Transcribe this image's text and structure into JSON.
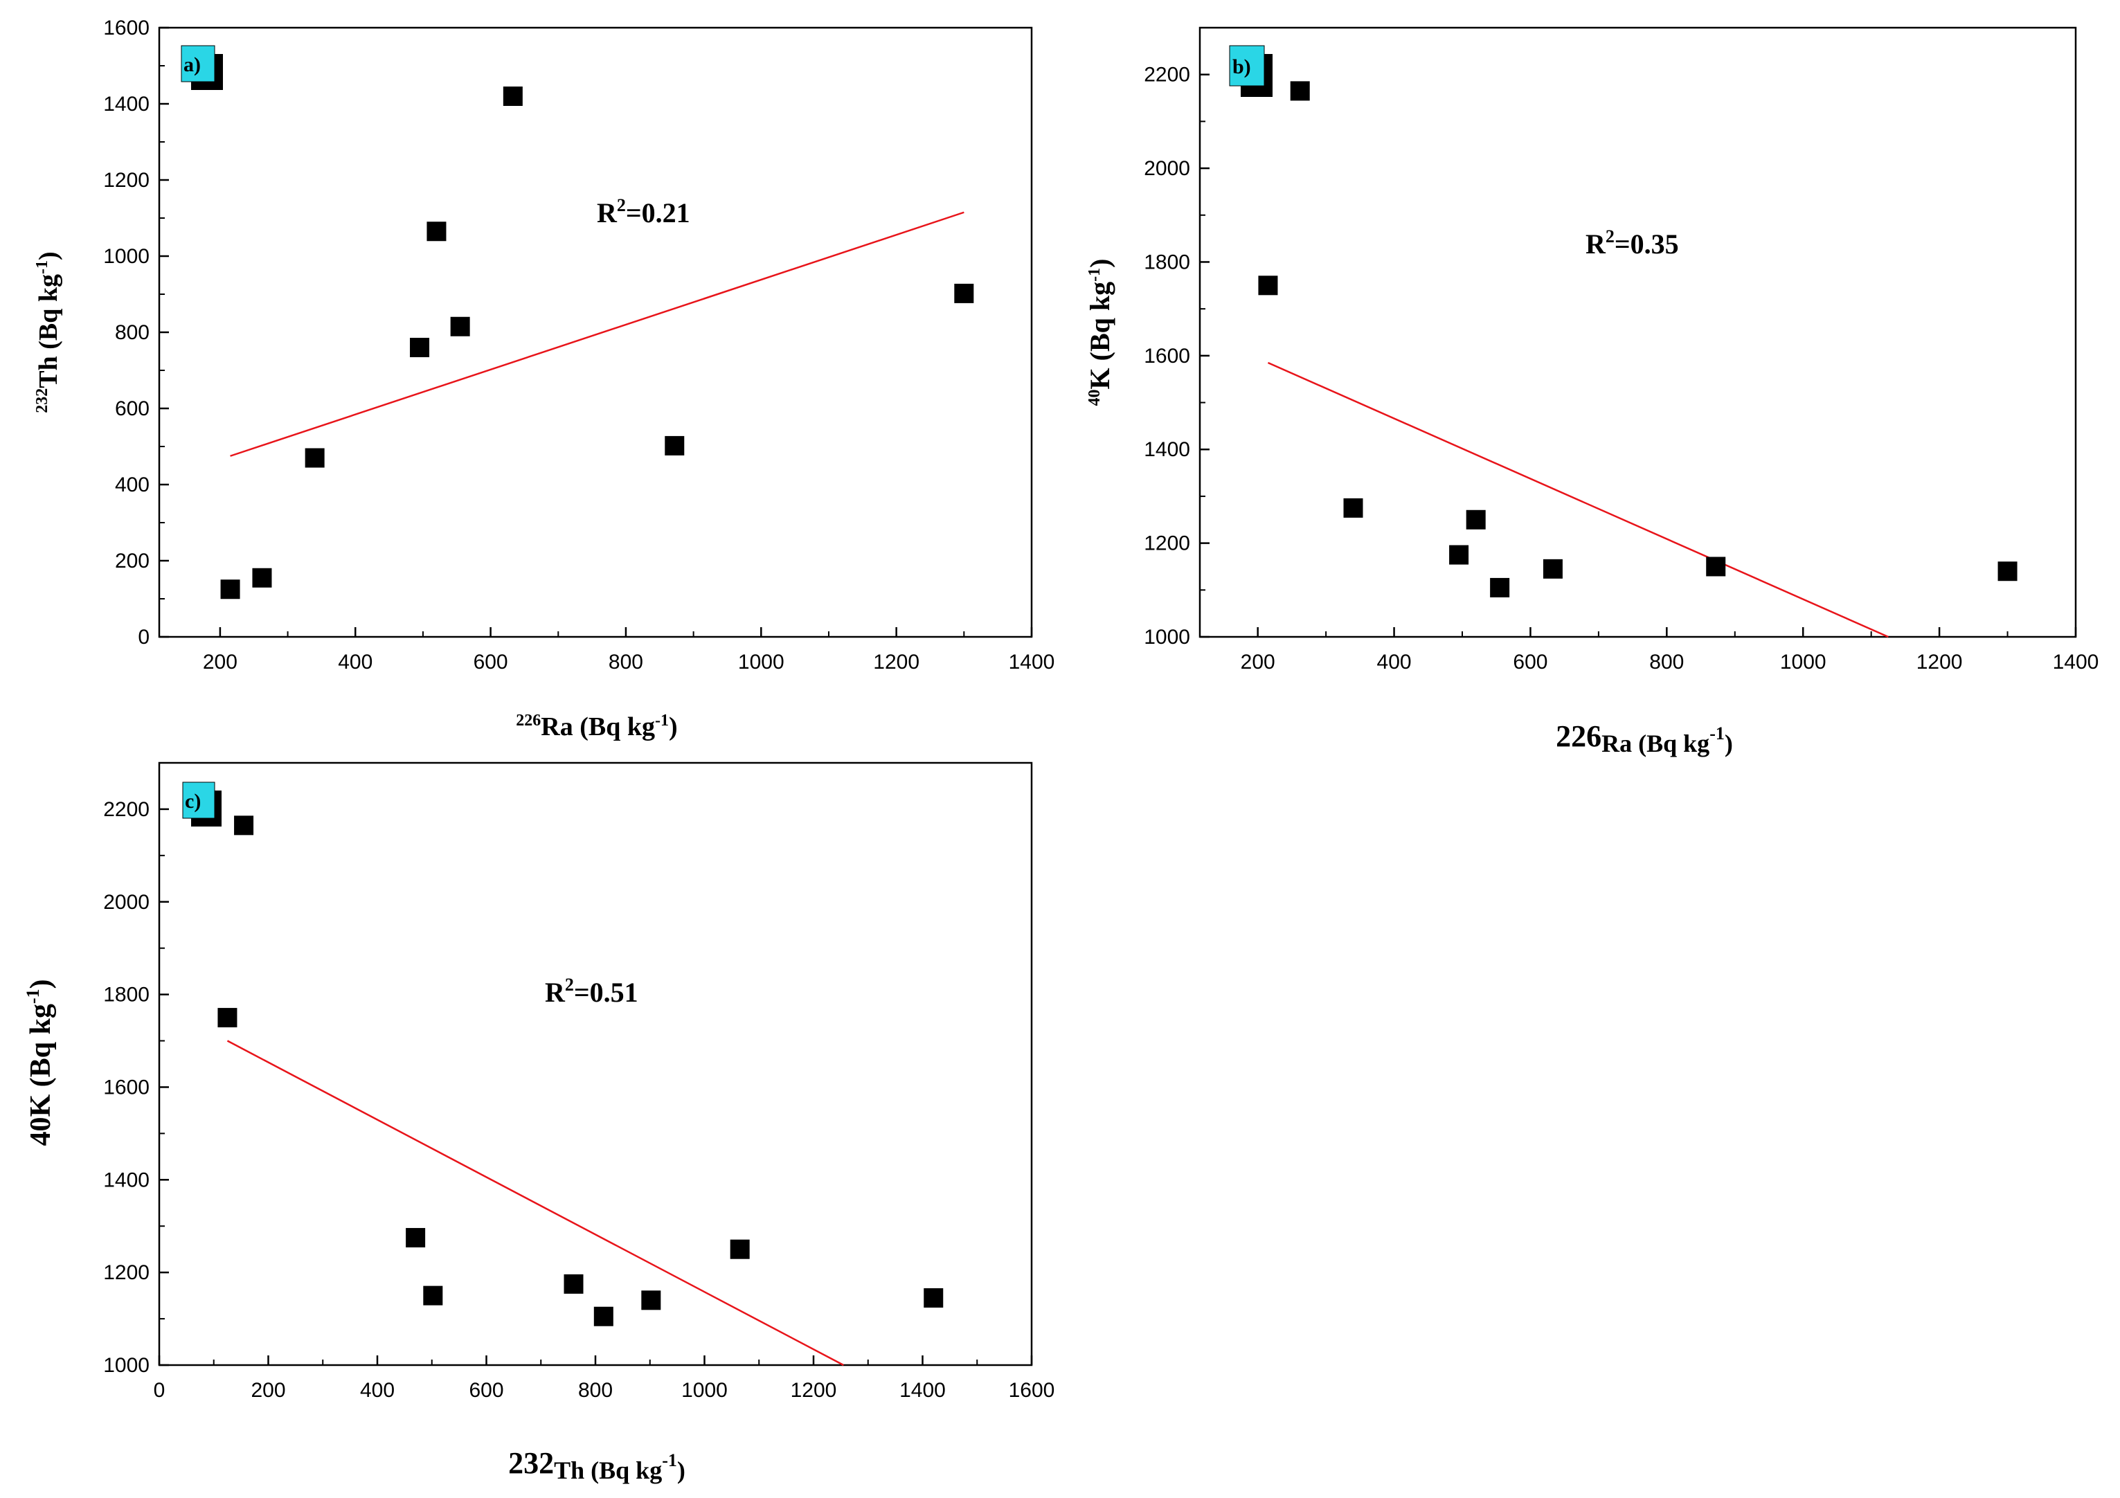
{
  "chart_data": [
    {
      "id": "a",
      "type": "scatter",
      "panel_label": "a)",
      "title": "",
      "x_isotope": "226",
      "x_element": "Ra",
      "x_unit": " (Bq kg",
      "x_exp": "-1",
      "x_close": ")",
      "y_isotope": "232",
      "y_element": "Th",
      "y_unit": " (Bq kg",
      "y_exp": "-1",
      "y_close": ")",
      "xlim": [
        110,
        1400
      ],
      "ylim": [
        0,
        1600
      ],
      "xticks": [
        200,
        400,
        600,
        800,
        1000,
        1200,
        1400
      ],
      "yticks": [
        0,
        200,
        400,
        600,
        800,
        1000,
        1200,
        1400,
        1600
      ],
      "points": [
        {
          "x": 215,
          "y": 125
        },
        {
          "x": 262,
          "y": 155
        },
        {
          "x": 340,
          "y": 470
        },
        {
          "x": 495,
          "y": 760
        },
        {
          "x": 520,
          "y": 1065
        },
        {
          "x": 555,
          "y": 815
        },
        {
          "x": 633,
          "y": 1420
        },
        {
          "x": 872,
          "y": 502
        },
        {
          "x": 1300,
          "y": 902
        }
      ],
      "fit_line": {
        "x": [
          215,
          1300
        ],
        "y": [
          475,
          1115
        ]
      },
      "r2_base": "R",
      "r2_exp": "2",
      "r2_value": "=0.21",
      "r2_at": {
        "x": 790,
        "y": 1115
      }
    },
    {
      "id": "b",
      "type": "scatter",
      "panel_label": "b)",
      "title": "",
      "x_isotope": "226",
      "x_element": "Ra",
      "x_unit": " (Bq kg",
      "x_exp": "-1",
      "x_close": ")",
      "y_isotope": "40",
      "y_element": "K",
      "y_unit": " (Bq kg",
      "y_exp": "-1",
      "y_close": ")",
      "xlim": [
        115,
        1400
      ],
      "ylim": [
        1000,
        2300
      ],
      "xticks": [
        200,
        400,
        600,
        800,
        1000,
        1200,
        1400
      ],
      "yticks": [
        1000,
        1200,
        1400,
        1600,
        1800,
        2000,
        2200
      ],
      "points": [
        {
          "x": 215,
          "y": 1750
        },
        {
          "x": 262,
          "y": 2165
        },
        {
          "x": 340,
          "y": 1275
        },
        {
          "x": 495,
          "y": 1175
        },
        {
          "x": 520,
          "y": 1250
        },
        {
          "x": 555,
          "y": 1105
        },
        {
          "x": 633,
          "y": 1145
        },
        {
          "x": 872,
          "y": 1150
        },
        {
          "x": 1300,
          "y": 1140
        }
      ],
      "fit_line": {
        "x": [
          215,
          1125
        ],
        "y": [
          1585,
          1000
        ]
      },
      "r2_base": "R",
      "r2_exp": "2",
      "r2_value": "=0.35",
      "r2_at": {
        "x": 1025,
        "y": 1860
      }
    },
    {
      "id": "c",
      "type": "scatter",
      "panel_label": "c)",
      "title": "",
      "x_isotope": "232",
      "x_element": "Th",
      "x_unit": " (Bq kg",
      "x_exp": "-1",
      "x_close": ")",
      "y_isotope": "40",
      "y_element": "K",
      "y_unit": " (Bq kg",
      "y_exp": "-1",
      "y_close": ")",
      "xlim": [
        0,
        1600
      ],
      "ylim": [
        1000,
        2300
      ],
      "xticks": [
        0,
        200,
        400,
        600,
        800,
        1000,
        1200,
        1400,
        1600
      ],
      "yticks": [
        1000,
        1200,
        1400,
        1600,
        1800,
        2000,
        2200
      ],
      "points": [
        {
          "x": 125,
          "y": 1750
        },
        {
          "x": 155,
          "y": 2165
        },
        {
          "x": 470,
          "y": 1275
        },
        {
          "x": 502,
          "y": 1150
        },
        {
          "x": 760,
          "y": 1175
        },
        {
          "x": 815,
          "y": 1105
        },
        {
          "x": 902,
          "y": 1140
        },
        {
          "x": 1065,
          "y": 1250
        },
        {
          "x": 1420,
          "y": 1145
        }
      ],
      "fit_line": {
        "x": [
          125,
          1255
        ],
        "y": [
          1700,
          1000
        ]
      },
      "r2_base": "R",
      "r2_exp": "2",
      "r2_value": "=0.51",
      "r2_at": {
        "x": 700,
        "y": 1830
      }
    }
  ],
  "colors": {
    "marker": "#000000",
    "fit_line": "#e8141a",
    "axes": "#000000",
    "panel_tag_bg": "#2ad6e6"
  }
}
